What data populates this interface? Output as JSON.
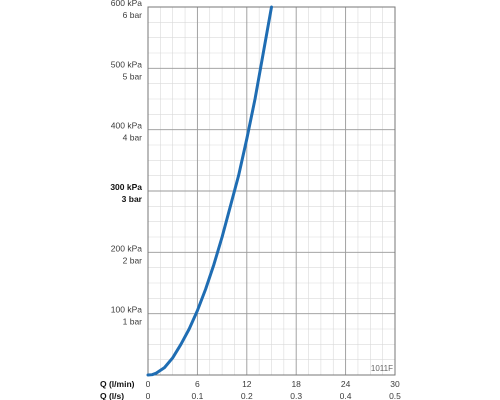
{
  "figure_code": "1011F",
  "colors": {
    "curve": "#1f6db3",
    "minor_grid": "#d9d9d9",
    "major_grid": "#9a9a9a",
    "frame": "#777777",
    "background": "#ffffff"
  },
  "chart_data": {
    "type": "line",
    "title": "",
    "x_axes": [
      {
        "label": "Q (l/min)",
        "ticks": [
          "0",
          "6",
          "12",
          "18",
          "24",
          "30"
        ],
        "range": [
          0,
          30
        ]
      },
      {
        "label": "Q (l/s)",
        "ticks": [
          "0",
          "0.1",
          "0.2",
          "0.3",
          "0.4",
          "0.5"
        ],
        "range": [
          0,
          0.5
        ]
      }
    ],
    "y_axis": {
      "range_kpa": [
        0,
        600
      ],
      "ticks": [
        {
          "value": 100,
          "kpa": "100 kPa",
          "bar": "1 bar",
          "bold": false
        },
        {
          "value": 200,
          "kpa": "200 kPa",
          "bar": "2 bar",
          "bold": false
        },
        {
          "value": 300,
          "kpa": "300 kPa",
          "bar": "3 bar",
          "bold": true
        },
        {
          "value": 400,
          "kpa": "400 kPa",
          "bar": "4 bar",
          "bold": false
        },
        {
          "value": 500,
          "kpa": "500 kPa",
          "bar": "5 bar",
          "bold": false
        },
        {
          "value": 600,
          "kpa": "600 kPa",
          "bar": "6 bar",
          "bold": false
        }
      ]
    },
    "grid": true,
    "grid_major_x_step": 6,
    "grid_minor_x_step": 1.5,
    "grid_major_y_step": 100,
    "grid_minor_y_step": 25,
    "series": [
      {
        "x": [
          0,
          0.5,
          1,
          2,
          3,
          4,
          5,
          6,
          7,
          8,
          9,
          10,
          11,
          12,
          13,
          14,
          15
        ],
        "y": [
          0,
          0.5,
          3,
          12,
          28,
          50,
          75,
          105,
          140,
          180,
          225,
          275,
          325,
          385,
          450,
          525,
          600
        ]
      }
    ]
  }
}
